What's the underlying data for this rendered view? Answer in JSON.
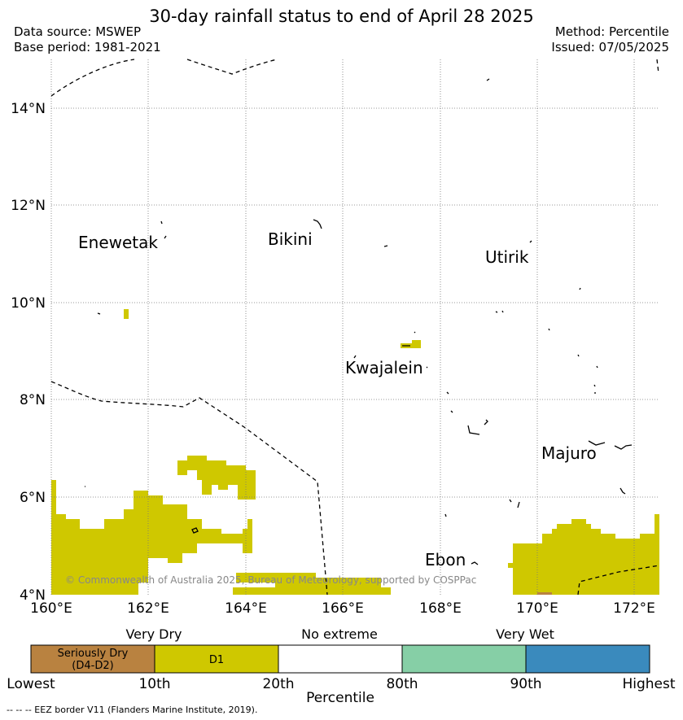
{
  "header": {
    "title": "30-day rainfall status to end of April 28 2025",
    "data_source": "Data source: MSWEP",
    "base_period": "Base period: 1981-2021",
    "method": "Method: Percentile",
    "issued": "Issued: 07/05/2025"
  },
  "map": {
    "lon_labels": [
      "160°E",
      "162°E",
      "164°E",
      "166°E",
      "168°E",
      "170°E",
      "172°E"
    ],
    "lat_labels": [
      "14°N",
      "12°N",
      "10°N",
      "8°N",
      "6°N",
      "4°N"
    ],
    "places": [
      "Enewetak",
      "Bikini",
      "Utirik",
      "Kwajalein",
      "Majuro",
      "Ebon"
    ],
    "copyright": "© Commonwealth of Australia 2025, Bureau of Meteorology, supported by COSPPac",
    "colors": {
      "d1": "#cfc800",
      "seriously_dry": "#b98240",
      "very_wet_90": "#86cfa6",
      "highest": "#3a8abd"
    }
  },
  "legend": {
    "groups": [
      "Very Dry",
      "No extreme",
      "Very Wet"
    ],
    "box_labels": [
      "Seriously Dry\n(D4-D2)",
      "D1",
      "",
      "",
      ""
    ],
    "box_colors": [
      "#b98240",
      "#cfc800",
      "#ffffff",
      "#86cfa6",
      "#3a8abd"
    ],
    "ticks": [
      "Lowest",
      "10th",
      "20th",
      "80th",
      "90th",
      "Highest"
    ],
    "axis_label": "Percentile"
  },
  "footnote": "--  --  -- EEZ border V11 (Flanders Marine Institute, 2019)."
}
